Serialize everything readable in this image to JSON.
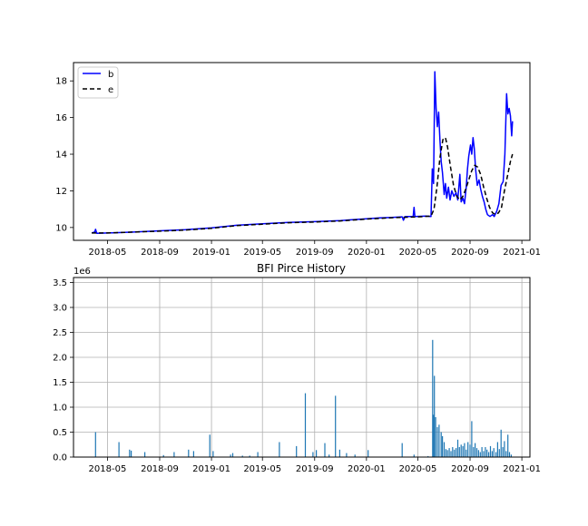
{
  "chart_data": [
    {
      "type": "line",
      "title": "",
      "xlabel": "",
      "ylabel": "",
      "grid": false,
      "legend_position": "top-left",
      "xlim": [
        "2018-02-10",
        "2021-01-20"
      ],
      "ylim": [
        9.3,
        19.0
      ],
      "x_ticks": [
        "2018-05",
        "2018-09",
        "2019-01",
        "2019-05",
        "2019-09",
        "2020-01",
        "2020-05",
        "2020-09",
        "2021-01"
      ],
      "y_ticks": [
        10,
        12,
        14,
        16,
        18
      ],
      "series": [
        {
          "name": "b",
          "color": "#0000ff",
          "style": "solid",
          "points": [
            [
              "2018-03-25",
              9.7
            ],
            [
              "2018-04-01",
              9.75
            ],
            [
              "2018-04-03",
              9.9
            ],
            [
              "2018-04-06",
              9.68
            ],
            [
              "2018-05-01",
              9.7
            ],
            [
              "2018-07-01",
              9.75
            ],
            [
              "2018-09-01",
              9.82
            ],
            [
              "2018-11-01",
              9.88
            ],
            [
              "2019-01-01",
              9.98
            ],
            [
              "2019-03-01",
              10.12
            ],
            [
              "2019-05-01",
              10.2
            ],
            [
              "2019-07-01",
              10.28
            ],
            [
              "2019-09-01",
              10.32
            ],
            [
              "2019-11-01",
              10.38
            ],
            [
              "2020-01-01",
              10.48
            ],
            [
              "2020-02-01",
              10.52
            ],
            [
              "2020-03-01",
              10.55
            ],
            [
              "2020-03-25",
              10.58
            ],
            [
              "2020-03-28",
              10.4
            ],
            [
              "2020-04-01",
              10.6
            ],
            [
              "2020-04-20",
              10.6
            ],
            [
              "2020-04-22",
              11.1
            ],
            [
              "2020-04-24",
              10.6
            ],
            [
              "2020-05-20",
              10.62
            ],
            [
              "2020-06-01",
              10.6
            ],
            [
              "2020-06-04",
              13.2
            ],
            [
              "2020-06-07",
              12.4
            ],
            [
              "2020-06-10",
              18.5
            ],
            [
              "2020-06-13",
              16.5
            ],
            [
              "2020-06-16",
              15.5
            ],
            [
              "2020-06-19",
              16.3
            ],
            [
              "2020-06-22",
              14.8
            ],
            [
              "2020-06-25",
              13.6
            ],
            [
              "2020-06-28",
              13.0
            ],
            [
              "2020-07-02",
              11.8
            ],
            [
              "2020-07-05",
              12.4
            ],
            [
              "2020-07-08",
              11.6
            ],
            [
              "2020-07-12",
              12.2
            ],
            [
              "2020-07-16",
              11.5
            ],
            [
              "2020-07-20",
              12.0
            ],
            [
              "2020-07-25",
              11.7
            ],
            [
              "2020-07-30",
              11.9
            ],
            [
              "2020-08-03",
              11.5
            ],
            [
              "2020-08-08",
              12.9
            ],
            [
              "2020-08-11",
              11.4
            ],
            [
              "2020-08-15",
              11.6
            ],
            [
              "2020-08-19",
              11.3
            ],
            [
              "2020-08-23",
              12.2
            ],
            [
              "2020-08-26",
              13.2
            ],
            [
              "2020-08-29",
              13.9
            ],
            [
              "2020-09-02",
              14.5
            ],
            [
              "2020-09-05",
              14.0
            ],
            [
              "2020-09-08",
              14.9
            ],
            [
              "2020-09-11",
              14.3
            ],
            [
              "2020-09-14",
              13.2
            ],
            [
              "2020-09-18",
              12.3
            ],
            [
              "2020-09-22",
              12.6
            ],
            [
              "2020-09-26",
              12.1
            ],
            [
              "2020-09-30",
              11.7
            ],
            [
              "2020-10-04",
              11.4
            ],
            [
              "2020-10-08",
              11.0
            ],
            [
              "2020-10-12",
              10.7
            ],
            [
              "2020-10-18",
              10.6
            ],
            [
              "2020-10-24",
              10.7
            ],
            [
              "2020-10-28",
              10.6
            ],
            [
              "2020-11-03",
              10.9
            ],
            [
              "2020-11-08",
              11.3
            ],
            [
              "2020-11-13",
              12.3
            ],
            [
              "2020-11-18",
              12.5
            ],
            [
              "2020-11-22",
              14.0
            ],
            [
              "2020-11-26",
              17.3
            ],
            [
              "2020-11-29",
              16.2
            ],
            [
              "2020-12-02",
              16.5
            ],
            [
              "2020-12-05",
              16.1
            ],
            [
              "2020-12-08",
              15.0
            ],
            [
              "2020-12-10",
              15.8
            ]
          ]
        },
        {
          "name": "e",
          "color": "#000000",
          "style": "dashed",
          "points": [
            [
              "2018-03-25",
              9.7
            ],
            [
              "2018-05-01",
              9.7
            ],
            [
              "2018-07-01",
              9.75
            ],
            [
              "2018-09-01",
              9.8
            ],
            [
              "2018-11-01",
              9.86
            ],
            [
              "2019-01-01",
              9.96
            ],
            [
              "2019-03-01",
              10.1
            ],
            [
              "2019-05-01",
              10.18
            ],
            [
              "2019-07-01",
              10.26
            ],
            [
              "2019-09-01",
              10.3
            ],
            [
              "2019-11-01",
              10.36
            ],
            [
              "2020-01-01",
              10.46
            ],
            [
              "2020-03-01",
              10.53
            ],
            [
              "2020-05-01",
              10.58
            ],
            [
              "2020-06-01",
              10.62
            ],
            [
              "2020-06-08",
              11.0
            ],
            [
              "2020-06-15",
              12.2
            ],
            [
              "2020-06-22",
              13.8
            ],
            [
              "2020-06-29",
              14.8
            ],
            [
              "2020-07-05",
              14.9
            ],
            [
              "2020-07-10",
              14.4
            ],
            [
              "2020-07-17",
              13.3
            ],
            [
              "2020-07-24",
              12.3
            ],
            [
              "2020-08-01",
              11.7
            ],
            [
              "2020-08-08",
              11.5
            ],
            [
              "2020-08-15",
              11.7
            ],
            [
              "2020-08-22",
              12.1
            ],
            [
              "2020-08-29",
              12.6
            ],
            [
              "2020-09-05",
              13.1
            ],
            [
              "2020-09-12",
              13.4
            ],
            [
              "2020-09-19",
              13.3
            ],
            [
              "2020-09-26",
              12.9
            ],
            [
              "2020-10-03",
              12.2
            ],
            [
              "2020-10-10",
              11.6
            ],
            [
              "2020-10-17",
              11.1
            ],
            [
              "2020-10-24",
              10.8
            ],
            [
              "2020-10-31",
              10.7
            ],
            [
              "2020-11-07",
              10.8
            ],
            [
              "2020-11-14",
              11.1
            ],
            [
              "2020-11-21",
              12.0
            ],
            [
              "2020-11-28",
              12.8
            ],
            [
              "2020-12-05",
              13.6
            ],
            [
              "2020-12-10",
              14.0
            ]
          ]
        }
      ]
    },
    {
      "type": "bar",
      "title": "BFI Pirce History",
      "xlabel": "",
      "ylabel": "",
      "grid": true,
      "y_offset_label": "1e6",
      "xlim": [
        "2018-02-10",
        "2021-01-20"
      ],
      "ylim": [
        0,
        3.6
      ],
      "x_ticks": [
        "2018-05",
        "2018-09",
        "2019-01",
        "2019-05",
        "2019-09",
        "2020-01",
        "2020-05",
        "2020-09",
        "2021-01"
      ],
      "y_ticks": [
        "0.0",
        "0.5",
        "1.0",
        "1.5",
        "2.0",
        "2.5",
        "3.0",
        "3.5"
      ],
      "color": "#1f77b4",
      "bars": [
        [
          "2018-04-03",
          0.5
        ],
        [
          "2018-05-28",
          0.3
        ],
        [
          "2018-06-22",
          0.15
        ],
        [
          "2018-06-26",
          0.13
        ],
        [
          "2018-07-28",
          0.1
        ],
        [
          "2018-09-10",
          0.04
        ],
        [
          "2018-10-05",
          0.1
        ],
        [
          "2018-11-08",
          0.15
        ],
        [
          "2018-11-20",
          0.12
        ],
        [
          "2018-12-28",
          0.45
        ],
        [
          "2019-01-05",
          0.12
        ],
        [
          "2019-02-15",
          0.05
        ],
        [
          "2019-02-20",
          0.08
        ],
        [
          "2019-03-15",
          0.03
        ],
        [
          "2019-04-01",
          0.03
        ],
        [
          "2019-04-20",
          0.1
        ],
        [
          "2019-06-10",
          0.3
        ],
        [
          "2019-07-20",
          0.22
        ],
        [
          "2019-08-10",
          1.28
        ],
        [
          "2019-08-28",
          0.1
        ],
        [
          "2019-09-05",
          0.14
        ],
        [
          "2019-09-25",
          0.28
        ],
        [
          "2019-10-05",
          0.05
        ],
        [
          "2019-10-20",
          1.23
        ],
        [
          "2019-10-30",
          0.15
        ],
        [
          "2019-11-15",
          0.08
        ],
        [
          "2019-12-05",
          0.05
        ],
        [
          "2020-01-05",
          0.14
        ],
        [
          "2020-03-25",
          0.28
        ],
        [
          "2020-04-22",
          0.05
        ],
        [
          "2020-05-25",
          0.02
        ],
        [
          "2020-06-05",
          2.35
        ],
        [
          "2020-06-07",
          0.85
        ],
        [
          "2020-06-09",
          1.63
        ],
        [
          "2020-06-12",
          0.8
        ],
        [
          "2020-06-16",
          0.6
        ],
        [
          "2020-06-20",
          0.65
        ],
        [
          "2020-06-25",
          0.5
        ],
        [
          "2020-06-28",
          0.42
        ],
        [
          "2020-07-02",
          0.3
        ],
        [
          "2020-07-06",
          0.16
        ],
        [
          "2020-07-10",
          0.14
        ],
        [
          "2020-07-14",
          0.18
        ],
        [
          "2020-07-18",
          0.12
        ],
        [
          "2020-07-22",
          0.2
        ],
        [
          "2020-07-26",
          0.15
        ],
        [
          "2020-07-30",
          0.18
        ],
        [
          "2020-08-03",
          0.35
        ],
        [
          "2020-08-07",
          0.2
        ],
        [
          "2020-08-11",
          0.25
        ],
        [
          "2020-08-15",
          0.22
        ],
        [
          "2020-08-19",
          0.28
        ],
        [
          "2020-08-23",
          0.15
        ],
        [
          "2020-08-27",
          0.3
        ],
        [
          "2020-09-01",
          0.25
        ],
        [
          "2020-09-05",
          0.72
        ],
        [
          "2020-09-09",
          0.2
        ],
        [
          "2020-09-13",
          0.28
        ],
        [
          "2020-09-17",
          0.18
        ],
        [
          "2020-09-21",
          0.14
        ],
        [
          "2020-09-25",
          0.1
        ],
        [
          "2020-09-29",
          0.2
        ],
        [
          "2020-10-03",
          0.12
        ],
        [
          "2020-10-07",
          0.2
        ],
        [
          "2020-10-11",
          0.15
        ],
        [
          "2020-10-15",
          0.1
        ],
        [
          "2020-10-19",
          0.22
        ],
        [
          "2020-10-23",
          0.12
        ],
        [
          "2020-10-27",
          0.18
        ],
        [
          "2020-11-01",
          0.1
        ],
        [
          "2020-11-05",
          0.3
        ],
        [
          "2020-11-09",
          0.16
        ],
        [
          "2020-11-13",
          0.55
        ],
        [
          "2020-11-17",
          0.2
        ],
        [
          "2020-11-21",
          0.32
        ],
        [
          "2020-11-25",
          0.12
        ],
        [
          "2020-11-29",
          0.45
        ],
        [
          "2020-12-03",
          0.1
        ],
        [
          "2020-12-07",
          0.05
        ]
      ]
    }
  ]
}
